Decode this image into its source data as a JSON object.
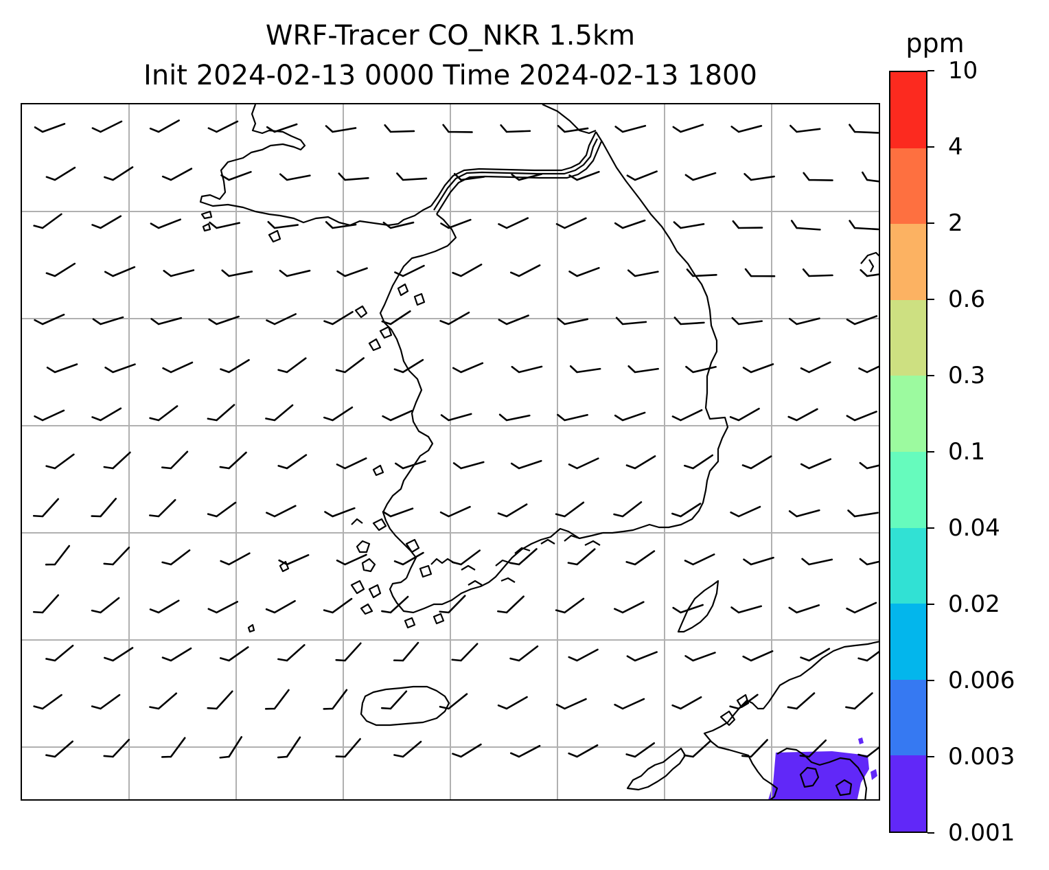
{
  "title": {
    "line1": "WRF-Tracer CO_NKR 1.5km",
    "line2": "Init 2024-02-13 0000 Time 2024-02-13 1800"
  },
  "colorbar": {
    "unit": "ppm",
    "levels": [
      "0.001",
      "0.003",
      "0.006",
      "0.02",
      "0.04",
      "0.1",
      "0.3",
      "0.6",
      "2",
      "4",
      "10"
    ],
    "colors": [
      "#6128f8",
      "#3679f2",
      "#03b6ec",
      "#31e1d4",
      "#66fbbd",
      "#9cfa9f",
      "#cde081",
      "#fcb262",
      "#fe7040",
      "#fc2a1f"
    ]
  },
  "map": {
    "tracer_color": "#6128f8",
    "coast_color": "#000000",
    "grid_color": "#b0b0b0",
    "wind_barb_color": "#000000",
    "gridlines": "on"
  }
}
